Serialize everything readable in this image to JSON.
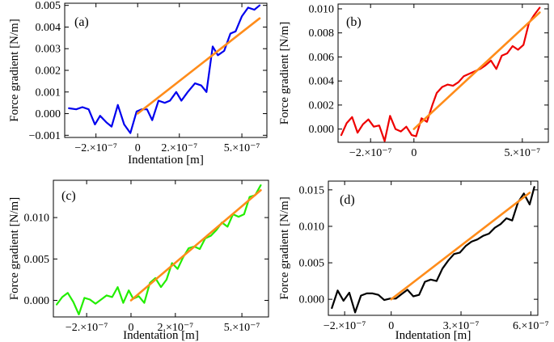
{
  "chart_data": [
    {
      "type": "line",
      "panel_label": "(a)",
      "xlabel": "Indentation [m]",
      "ylabel": "Force gradient [N/m]",
      "xlim": [
        -3.5e-07,
        6.2e-07
      ],
      "ylim": [
        -0.0011,
        0.0051
      ],
      "xticks": [
        {
          "v": -2e-07,
          "label": "−2.×10⁻⁷"
        },
        {
          "v": 0,
          "label": "0"
        },
        {
          "v": 2e-07,
          "label": "2.×10⁻⁷"
        },
        {
          "v": 5e-07,
          "label": "5.×10⁻⁷"
        }
      ],
      "yticks": [
        {
          "v": -0.001,
          "label": "−0.001"
        },
        {
          "v": 0,
          "label": "0.000"
        },
        {
          "v": 0.001,
          "label": "0.001"
        },
        {
          "v": 0.002,
          "label": "0.002"
        },
        {
          "v": 0.003,
          "label": "0.003"
        },
        {
          "v": 0.004,
          "label": "0.004"
        },
        {
          "v": 0.005,
          "label": "0.005"
        }
      ],
      "series": [
        {
          "color": "#0000ee",
          "width": 2.2,
          "x": [
            -3.3e-07,
            -2.95e-07,
            -2.65e-07,
            -2.35e-07,
            -2.05e-07,
            -1.8e-07,
            -1.5e-07,
            -1.25e-07,
            -9.5e-08,
            -6.5e-08,
            -3.5e-08,
            -5e-09,
            2e-08,
            4.5e-08,
            7e-08,
            1e-07,
            1.3e-07,
            1.55e-07,
            1.85e-07,
            2.1e-07,
            2.4e-07,
            2.75e-07,
            3.05e-07,
            3.3e-07,
            3.6e-07,
            3.85e-07,
            4.15e-07,
            4.45e-07,
            4.7e-07,
            5e-07,
            5.3e-07,
            5.6e-07,
            5.85e-07
          ],
          "y": [
            0.00025,
            0.0002,
            0.0003,
            0.0002,
            -0.0005,
            -0.0001,
            -0.0004,
            -0.0006,
            0.0004,
            -0.0005,
            -0.0009,
            0.0001,
            0.0002,
            0.0002,
            -0.0003,
            0.0006,
            0.0005,
            0.0006,
            0.001,
            0.0006,
            0.001,
            0.0014,
            0.0013,
            0.001,
            0.0031,
            0.0027,
            0.0029,
            0.0037,
            0.0038,
            0.0045,
            0.0049,
            0.0048,
            0.005
          ]
        },
        {
          "color": "#ff8c1a",
          "width": 2.6,
          "x": [
            0,
            5.85e-07
          ],
          "y": [
            0.0,
            0.0044
          ]
        }
      ]
    },
    {
      "type": "line",
      "panel_label": "(b)",
      "xlabel": "",
      "ylabel": "Force gradient [N/m]",
      "xlim": [
        -3.5e-07,
        6.2e-07
      ],
      "ylim": [
        -0.0011,
        0.0104
      ],
      "xticks": [
        {
          "v": -2e-07,
          "label": "−2.×10⁻⁷"
        },
        {
          "v": 0,
          "label": "0"
        },
        {
          "v": 5e-07,
          "label": "5.×10⁻⁷"
        }
      ],
      "yticks": [
        {
          "v": 0,
          "label": "0.000"
        },
        {
          "v": 0.002,
          "label": "0.002"
        },
        {
          "v": 0.004,
          "label": "0.004"
        },
        {
          "v": 0.006,
          "label": "0.006"
        },
        {
          "v": 0.008,
          "label": "0.008"
        },
        {
          "v": 0.01,
          "label": "0.010"
        }
      ],
      "series": [
        {
          "color": "#ee0000",
          "width": 2.2,
          "x": [
            -3.35e-07,
            -3.1e-07,
            -2.85e-07,
            -2.6e-07,
            -2.35e-07,
            -2.1e-07,
            -1.85e-07,
            -1.6e-07,
            -1.35e-07,
            -1.1e-07,
            -8.5e-08,
            -6e-08,
            -3.5e-08,
            -1e-08,
            1e-08,
            3.5e-08,
            6e-08,
            8.5e-08,
            1.05e-07,
            1.3e-07,
            1.55e-07,
            1.8e-07,
            2.05e-07,
            2.3e-07,
            2.55e-07,
            2.8e-07,
            3.05e-07,
            3.3e-07,
            3.55e-07,
            3.8e-07,
            4.05e-07,
            4.3e-07,
            4.55e-07,
            4.8e-07,
            5.05e-07,
            5.3e-07,
            5.55e-07,
            5.8e-07
          ],
          "y": [
            -0.0005,
            0.0005,
            0.001,
            -0.0003,
            0.0004,
            0.0008,
            0.0002,
            0.0003,
            -0.001,
            0.0011,
            0.0,
            -0.0002,
            0.0002,
            -0.0005,
            -0.0006,
            0.0009,
            0.0006,
            0.002,
            0.003,
            0.0035,
            0.0037,
            0.0036,
            0.0039,
            0.0044,
            0.0046,
            0.0048,
            0.005,
            0.0053,
            0.0057,
            0.005,
            0.0061,
            0.0063,
            0.0069,
            0.0066,
            0.007,
            0.0088,
            0.0095,
            0.0101
          ]
        },
        {
          "color": "#ff8c1a",
          "width": 2.6,
          "x": [
            0,
            5.8e-07
          ],
          "y": [
            0.0,
            0.0097
          ]
        }
      ]
    },
    {
      "type": "line",
      "panel_label": "(c)",
      "xlabel": "Indentation [m]",
      "ylabel": "Force gradient [N/m]",
      "xlim": [
        -3.5e-07,
        6.2e-07
      ],
      "ylim": [
        -0.002,
        0.0145
      ],
      "xticks": [
        {
          "v": -2e-07,
          "label": "−2.×10⁻⁷"
        },
        {
          "v": 0,
          "label": "0"
        },
        {
          "v": 2e-07,
          "label": "2.×10⁻⁷"
        },
        {
          "v": 5e-07,
          "label": "5.×10⁻⁷"
        }
      ],
      "yticks": [
        {
          "v": 0,
          "label": "0.000"
        },
        {
          "v": 0.005,
          "label": "0.005"
        },
        {
          "v": 0.01,
          "label": "0.010"
        }
      ],
      "series": [
        {
          "color": "#22ee00",
          "width": 2.2,
          "x": [
            -3.35e-07,
            -3.1e-07,
            -2.85e-07,
            -2.6e-07,
            -2.35e-07,
            -2.1e-07,
            -1.85e-07,
            -1.6e-07,
            -1.35e-07,
            -1.1e-07,
            -8.5e-08,
            -6e-08,
            -3.5e-08,
            -1e-08,
            1e-08,
            3.5e-08,
            6e-08,
            8.5e-08,
            1.1e-07,
            1.35e-07,
            1.6e-07,
            1.85e-07,
            2.1e-07,
            2.35e-07,
            2.6e-07,
            2.85e-07,
            3.1e-07,
            3.35e-07,
            3.6e-07,
            3.85e-07,
            4.1e-07,
            4.35e-07,
            4.6e-07,
            4.85e-07,
            5.1e-07,
            5.35e-07,
            5.6e-07,
            5.85e-07
          ],
          "y": [
            -0.0005,
            0.0004,
            0.0009,
            -0.0002,
            -0.0017,
            0.0003,
            0.0001,
            -0.0004,
            0.0001,
            0.0006,
            0.0004,
            0.0016,
            -0.0003,
            0.0012,
            0.0002,
            0.0005,
            -0.0003,
            0.0021,
            0.0027,
            0.0016,
            0.0025,
            0.0045,
            0.0038,
            0.0052,
            0.0063,
            0.0065,
            0.0062,
            0.0075,
            0.0078,
            0.0085,
            0.0094,
            0.0089,
            0.0104,
            0.0101,
            0.0104,
            0.0125,
            0.0127,
            0.0139
          ]
        },
        {
          "color": "#ff8c1a",
          "width": 2.6,
          "x": [
            0,
            5.85e-07
          ],
          "y": [
            0.0,
            0.0133
          ]
        }
      ]
    },
    {
      "type": "line",
      "panel_label": "(d)",
      "xlabel": "Indentation [m]",
      "ylabel": "Force gradient [N/m]",
      "xlim": [
        -2.7e-07,
        6.3e-07
      ],
      "ylim": [
        -0.0022,
        0.0162
      ],
      "xticks": [
        {
          "v": -2e-07,
          "label": "−2.×10⁻⁷"
        },
        {
          "v": 0,
          "label": "0"
        },
        {
          "v": 3e-07,
          "label": "3.×10⁻⁷"
        },
        {
          "v": 6e-07,
          "label": "6.×10⁻⁷"
        }
      ],
      "yticks": [
        {
          "v": 0,
          "label": "0.000"
        },
        {
          "v": 0.005,
          "label": "0.005"
        },
        {
          "v": 0.01,
          "label": "0.010"
        },
        {
          "v": 0.015,
          "label": "0.015"
        }
      ],
      "series": [
        {
          "color": "#000000",
          "width": 2.2,
          "x": [
            -2.55e-07,
            -2.3e-07,
            -2.05e-07,
            -1.8e-07,
            -1.55e-07,
            -1.3e-07,
            -1.05e-07,
            -8e-08,
            -5.5e-08,
            -3e-08,
            -5e-09,
            2e-08,
            4.5e-08,
            7e-08,
            9.5e-08,
            1.2e-07,
            1.45e-07,
            1.7e-07,
            1.95e-07,
            2.2e-07,
            2.45e-07,
            2.7e-07,
            2.95e-07,
            3.2e-07,
            3.45e-07,
            3.7e-07,
            3.95e-07,
            4.2e-07,
            4.45e-07,
            4.7e-07,
            4.95e-07,
            5.2e-07,
            5.45e-07,
            5.7e-07,
            5.95e-07,
            6.15e-07
          ],
          "y": [
            -0.0012,
            0.0012,
            -0.0002,
            0.0009,
            -0.0018,
            0.0005,
            0.0008,
            0.0008,
            0.0006,
            -0.0001,
            0.0001,
            0.0001,
            0.0007,
            0.0013,
            0.0004,
            0.0006,
            0.0024,
            0.0027,
            0.0025,
            0.0042,
            0.0053,
            0.0062,
            0.0064,
            0.0073,
            0.0079,
            0.0082,
            0.0087,
            0.009,
            0.0098,
            0.0103,
            0.0111,
            0.0108,
            0.0133,
            0.0145,
            0.013,
            0.0154
          ]
        },
        {
          "color": "#ff8c1a",
          "width": 2.6,
          "x": [
            0,
            5.95e-07
          ],
          "y": [
            0.0,
            0.0146
          ]
        }
      ]
    }
  ]
}
